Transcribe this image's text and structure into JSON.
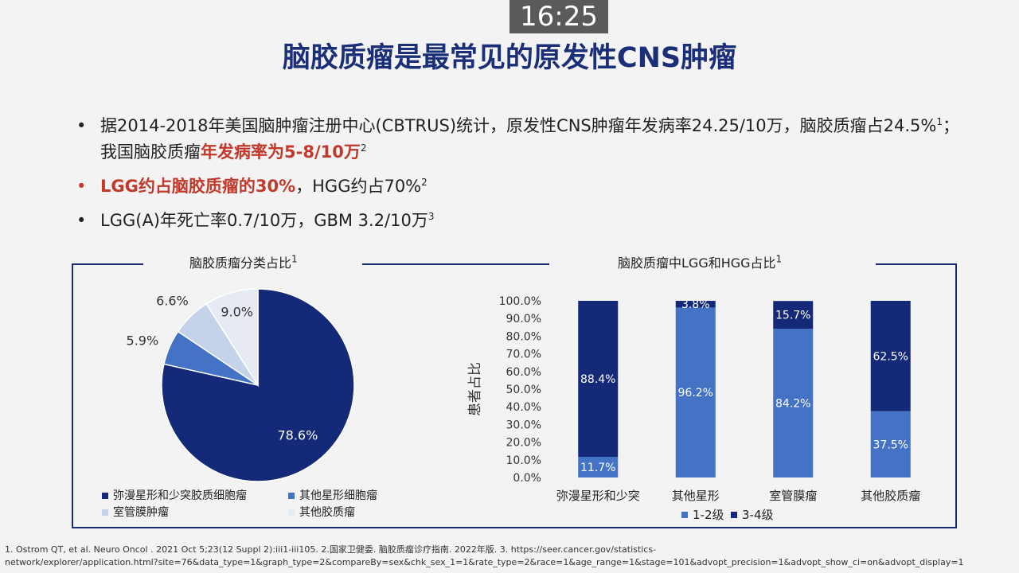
{
  "timer": "16:25",
  "slide_title": "脑胶质瘤是最常见的原发性CNS肿瘤",
  "bullets": {
    "b1_text_a": "据2014-2018年美国脑肿瘤注册中心(CBTRUS)统计，原发性CNS肿瘤年发病率24.25/10万，脑胶质瘤占24.5%",
    "b1_sup1": "1",
    "b1_text_b": "；我国脑胶质瘤",
    "b1_highlight": "年发病率为5-8/10万",
    "b1_sup2": "2",
    "b2_highlight": "LGG约占脑胶质瘤的30%",
    "b2_text": "，HGG约占70%",
    "b2_sup": "2",
    "b3_text": "LGG(A)年死亡率0.7/10万，GBM 3.2/10万",
    "b3_sup": "3",
    "dot": "•"
  },
  "pie_panel": {
    "title": "脑胶质瘤分类占比",
    "title_sup": "1"
  },
  "bar_panel": {
    "title": "脑胶质瘤中LGG和HGG占比",
    "title_sup": "1"
  },
  "colors": {
    "dark": "#142a78",
    "mid": "#4472c4",
    "light": "#c5d3ea",
    "pale": "#e6ebf3",
    "title": "#1a2f78",
    "accent_red": "#c0392b"
  },
  "chart_data": [
    {
      "type": "pie",
      "title": "脑胶质瘤分类占比",
      "slices": [
        {
          "name": "弥漫星形和少突胶质细胞瘤",
          "value": 78.6,
          "label": "78.6%",
          "color": "#142a78"
        },
        {
          "name": "其他星形细胞瘤",
          "value": 5.9,
          "label": "5.9%",
          "color": "#4472c4"
        },
        {
          "name": "室管膜肿瘤",
          "value": 6.6,
          "label": "6.6%",
          "color": "#c5d3ea"
        },
        {
          "name": "其他胶质瘤",
          "value": 9.0,
          "label": "9.0%",
          "color": "#e6ebf3"
        }
      ]
    },
    {
      "type": "bar",
      "stacked": true,
      "title": "脑胶质瘤中LGG和HGG占比",
      "ylabel": "患者占比",
      "ylim": [
        0,
        100
      ],
      "yticks": [
        "0.0%",
        "10.0%",
        "20.0%",
        "30.0%",
        "40.0%",
        "50.0%",
        "60.0%",
        "70.0%",
        "80.0%",
        "90.0%",
        "100.0%"
      ],
      "categories": [
        "弥漫星形和少突",
        "其他星形",
        "室管膜瘤",
        "其他胶质瘤"
      ],
      "series": [
        {
          "name": "1-2级",
          "values": [
            11.7,
            96.2,
            84.2,
            37.5
          ],
          "labels": [
            "11.7%",
            "96.2%",
            "84.2%",
            "37.5%"
          ],
          "color": "#4472c4"
        },
        {
          "name": "3-4级",
          "values": [
            88.4,
            3.8,
            15.7,
            62.5
          ],
          "labels": [
            "88.4%",
            "3.8%",
            "15.7%",
            "62.5%"
          ],
          "color": "#142a78"
        }
      ]
    }
  ],
  "footnote_line1": "1. Ostrom QT, et al. Neuro Oncol . 2021 Oct 5;23(12 Suppl 2):iii1-iii105. 2.国家卫健委. 脑胶质瘤诊疗指南. 2022年版.  3. https://seer.cancer.gov/statistics-",
  "footnote_line2": "network/explorer/application.html?site=76&data_type=1&graph_type=2&compareBy=sex&chk_sex_1=1&rate_type=2&race=1&age_range=1&stage=101&advopt_precision=1&advopt_show_ci=on&advopt_display=1"
}
